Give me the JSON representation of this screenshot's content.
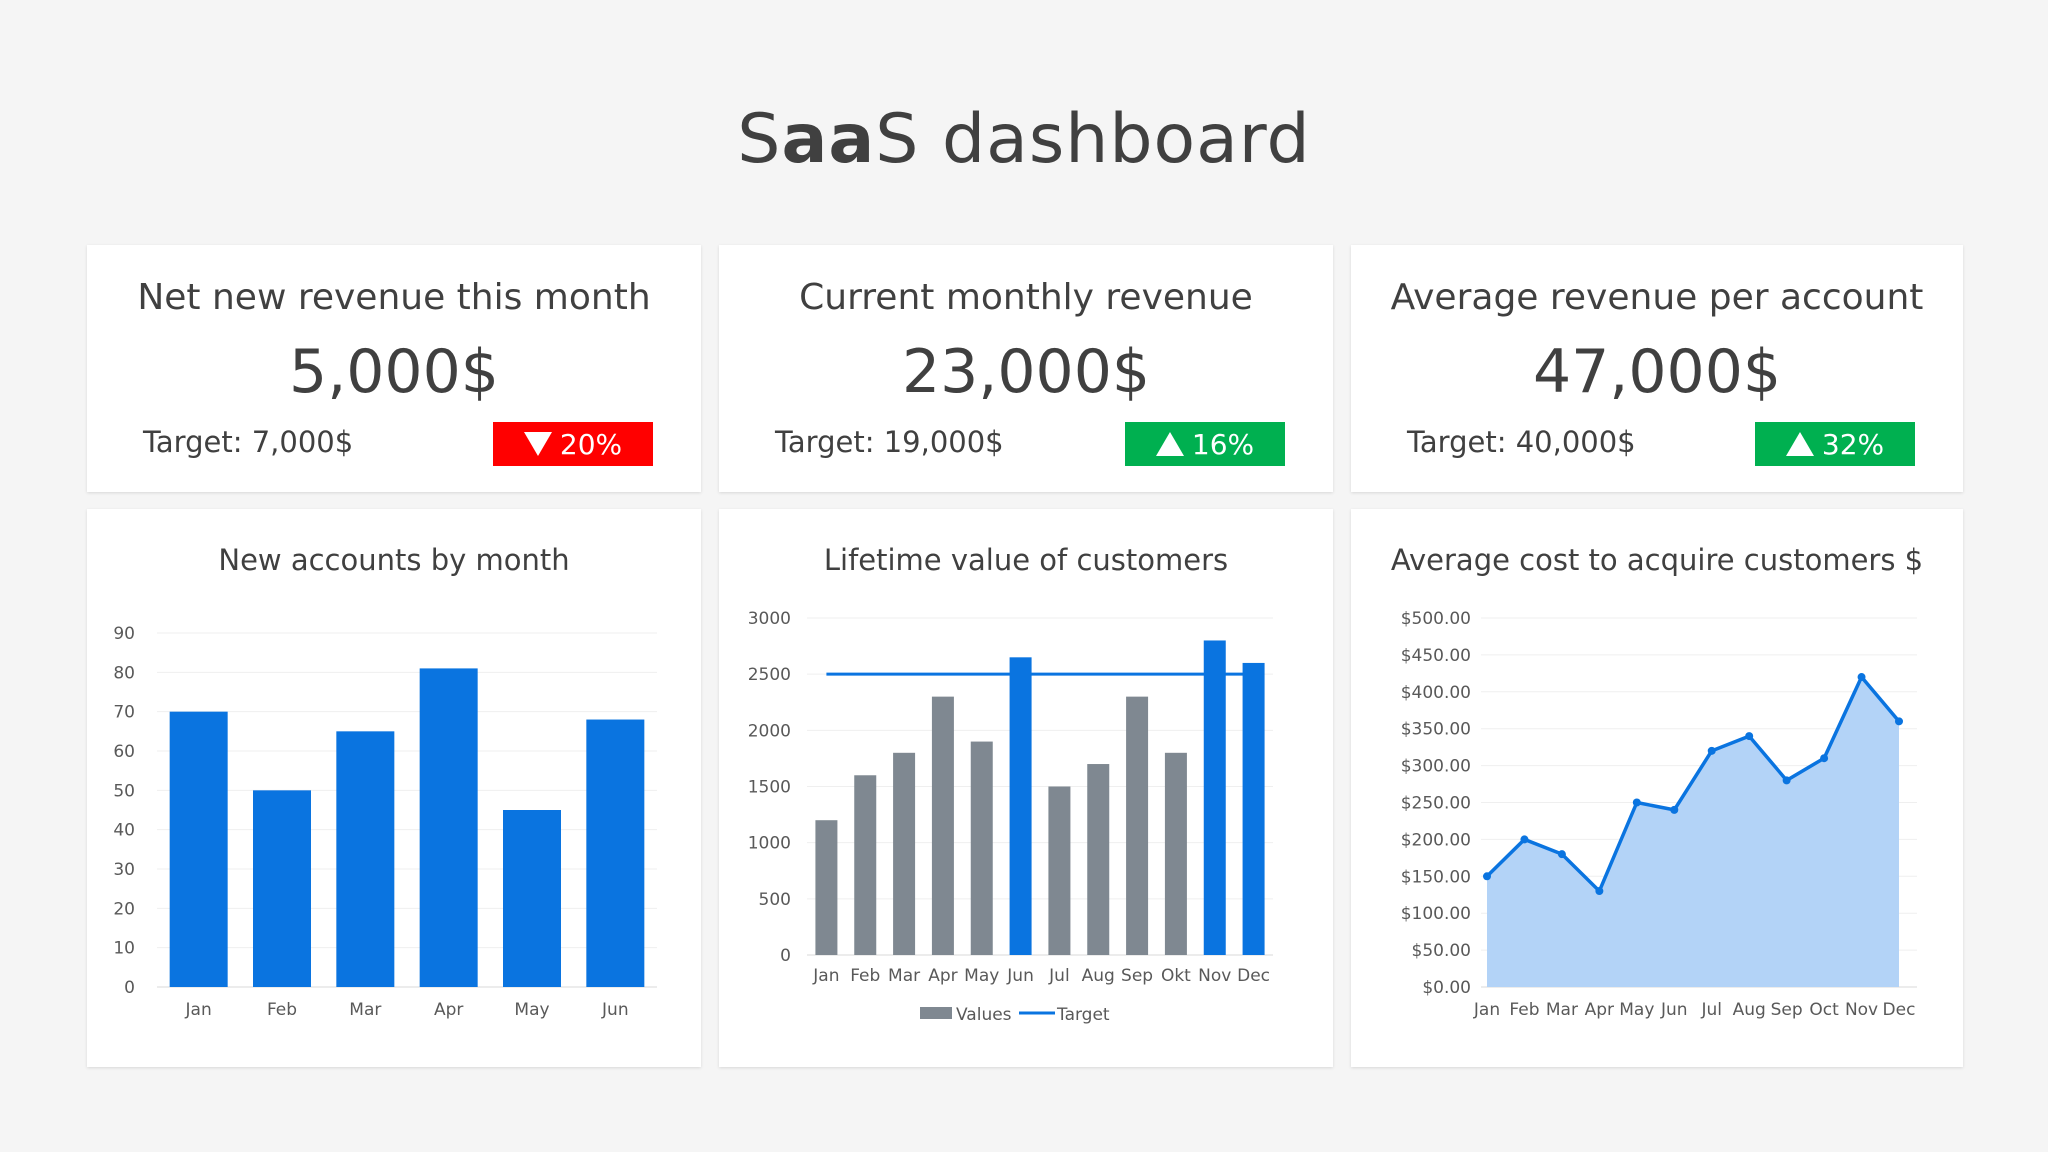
{
  "dashboard": {
    "title_prefix": "S",
    "title_bold": "aa",
    "title_suffix": "S dashboard"
  },
  "kpis": [
    {
      "title": "Net new revenue this month",
      "value": "5,000$",
      "target": "Target: 7,000$",
      "change": "20%",
      "direction": "down",
      "badge_color": "#ff0000"
    },
    {
      "title": "Current monthly revenue",
      "value": "23,000$",
      "target": "Target: 19,000$",
      "change": "16%",
      "direction": "up",
      "badge_color": "#00b050"
    },
    {
      "title": "Average revenue per account",
      "value": "47,000$",
      "target": "Target: 40,000$",
      "change": "32%",
      "direction": "up",
      "badge_color": "#00b050"
    }
  ],
  "chart_data": [
    {
      "type": "bar",
      "title": "New accounts by month",
      "categories": [
        "Jan",
        "Feb",
        "Mar",
        "Apr",
        "May",
        "Jun"
      ],
      "values": [
        70,
        50,
        65,
        81,
        45,
        68
      ],
      "ylim": [
        0,
        90
      ],
      "yticks": [
        "0",
        "10",
        "20",
        "30",
        "40",
        "50",
        "60",
        "70",
        "80",
        "90"
      ],
      "color": "#0a74e0",
      "grid": true
    },
    {
      "type": "bar",
      "title": "Lifetime value of customers",
      "categories": [
        "Jan",
        "Feb",
        "Mar",
        "Apr",
        "May",
        "Jun",
        "Jul",
        "Aug",
        "Sep",
        "Okt",
        "Nov",
        "Dec"
      ],
      "series": [
        {
          "name": "Values",
          "values": [
            1200,
            1600,
            1800,
            2300,
            1900,
            2650,
            1500,
            1700,
            2300,
            1800,
            2800,
            2600
          ]
        },
        {
          "name": "Target",
          "type": "line",
          "values": [
            2500,
            2500,
            2500,
            2500,
            2500,
            2500,
            2500,
            2500,
            2500,
            2500,
            2500,
            2500
          ]
        }
      ],
      "highlight": [
        false,
        false,
        false,
        false,
        false,
        true,
        false,
        false,
        false,
        false,
        true,
        true
      ],
      "ylim": [
        0,
        3000
      ],
      "yticks": [
        "0",
        "500",
        "1000",
        "1500",
        "2000",
        "2500",
        "3000"
      ],
      "bar_color": "#7f8891",
      "highlight_color": "#0a74e0",
      "line_color": "#0a74e0",
      "legend": "bottom",
      "grid": true
    },
    {
      "type": "area",
      "title": "Average cost to acquire customers $",
      "categories": [
        "Jan",
        "Feb",
        "Mar",
        "Apr",
        "May",
        "Jun",
        "Jul",
        "Aug",
        "Sep",
        "Oct",
        "Nov",
        "Dec"
      ],
      "values": [
        150,
        200,
        180,
        130,
        250,
        240,
        320,
        340,
        280,
        310,
        420,
        360
      ],
      "ylim": [
        0,
        500
      ],
      "yticks": [
        "$0.00",
        "$50.00",
        "$100.00",
        "$150.00",
        "$200.00",
        "$250.00",
        "$300.00",
        "$350.00",
        "$400.00",
        "$450.00",
        "$500.00"
      ],
      "line_color": "#0a74e0",
      "fill_color": "#b3d3f7",
      "grid": true
    }
  ]
}
